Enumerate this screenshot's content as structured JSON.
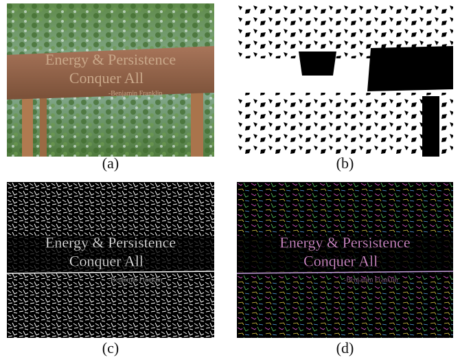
{
  "panels": [
    {
      "caption": "(a)",
      "sign": [
        "Energy & Persistence",
        "Conquer All",
        "-Benjamin Franklin"
      ]
    },
    {
      "caption": "(b)"
    },
    {
      "caption": "(c)",
      "sign": [
        "Energy & Persistence",
        "Conquer All",
        "-Benjamin Franklin"
      ]
    },
    {
      "caption": "(d)",
      "sign": [
        "Energy & Persistence",
        "Conquer All",
        "-Benjamin Franklin"
      ]
    }
  ]
}
